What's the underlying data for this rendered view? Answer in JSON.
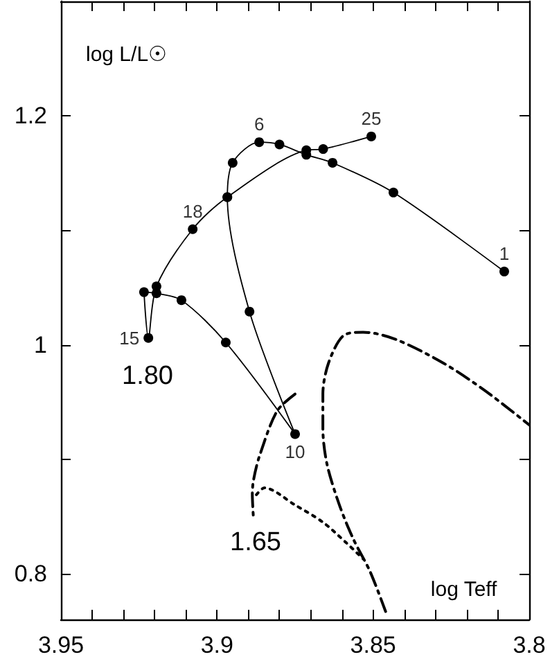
{
  "chart_data": {
    "type": "line",
    "xlabel": "log Teff",
    "ylabel": "log L/L☉",
    "xlim": [
      3.95,
      3.8
    ],
    "ylim": [
      0.76,
      1.3
    ],
    "xticks": [
      3.95,
      {
        "value": 3.94,
        "label": null
      },
      {
        "value": 3.93,
        "label": null
      },
      {
        "value": 3.92,
        "label": null
      },
      {
        "value": 3.91,
        "label": null
      },
      3.9,
      {
        "value": 3.89,
        "label": null
      },
      {
        "value": 3.88,
        "label": null
      },
      {
        "value": 3.87,
        "label": null
      },
      {
        "value": 3.86,
        "label": null
      },
      3.85,
      {
        "value": 3.84,
        "label": null
      },
      {
        "value": 3.83,
        "label": null
      },
      {
        "value": 3.82,
        "label": null
      },
      {
        "value": 3.81,
        "label": null
      },
      3.8
    ],
    "yticks": [
      0.8,
      {
        "value": 0.9,
        "label": null
      },
      1,
      {
        "value": 1.1,
        "label": null
      },
      1.2
    ],
    "grid": false,
    "series": [
      {
        "color": "#000000",
        "marker": "circle",
        "line_style": "solid",
        "x": [
          3.808,
          3.8435,
          3.863,
          3.8714,
          3.88,
          3.8865,
          3.895,
          3.8967,
          3.8896,
          3.875,
          3.8972,
          3.9114,
          3.9194,
          3.9234,
          3.922,
          3.9194,
          3.9078,
          3.8967,
          3.8714,
          3.866,
          3.8506
        ],
        "values": [
          1.064,
          1.133,
          1.159,
          1.166,
          1.175,
          1.177,
          1.159,
          1.129,
          1.029,
          0.922,
          1.002,
          1.039,
          1.045,
          1.046,
          1.006,
          1.051,
          1.101,
          1.129,
          1.17,
          1.171,
          1.182
        ]
      },
      {
        "color": "#000000",
        "marker": "none",
        "line_style": "dashed",
        "x": [
          3.875,
          3.8808,
          3.8865,
          3.8883,
          3.8887,
          3.8883
        ],
        "values": [
          0.957,
          0.942,
          0.902,
          0.882,
          0.87,
          0.847
        ]
      },
      {
        "color": "#000000",
        "marker": "none",
        "line_style": "dotted",
        "x": [
          3.8874,
          3.8848,
          3.875,
          3.8661,
          3.8586,
          3.8532
        ],
        "values": [
          0.869,
          0.875,
          0.86,
          0.845,
          0.827,
          0.813
        ]
      },
      {
        "color": "#000000",
        "marker": "none",
        "line_style": "dashed",
        "x": [
          3.846,
          3.851,
          3.8563,
          3.8608,
          3.8648,
          3.8661,
          3.8661,
          3.8643,
          3.8595,
          3.8532,
          3.843,
          3.8275,
          3.8142,
          3.8
        ],
        "values": [
          0.767,
          0.802,
          0.83,
          0.86,
          0.896,
          0.927,
          0.957,
          0.984,
          1.008,
          1.011,
          1.005,
          0.984,
          0.96,
          0.93
        ]
      }
    ],
    "annotations": [
      {
        "text": "1",
        "x": 3.808,
        "y": 1.064
      },
      {
        "text": "6",
        "x": 3.8865,
        "y": 1.177
      },
      {
        "text": "10",
        "x": 3.875,
        "y": 0.922
      },
      {
        "text": "15",
        "x": 3.922,
        "y": 1.006
      },
      {
        "text": "18",
        "x": 3.9078,
        "y": 1.101
      },
      {
        "text": "25",
        "x": 3.8506,
        "y": 1.182
      },
      "1.80",
      "1.65"
    ]
  }
}
